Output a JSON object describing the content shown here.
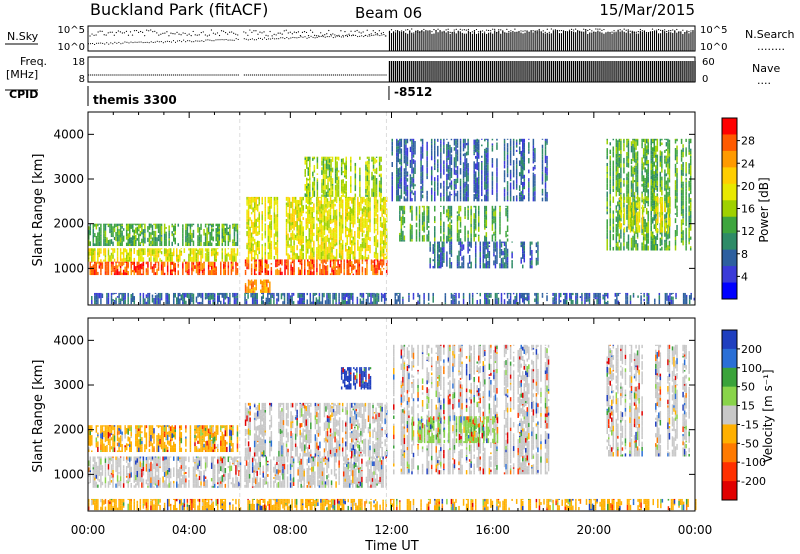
{
  "header": {
    "station": "Buckland Park (fitACF)",
    "beam": "Beam 06",
    "date": "15/Mar/2015"
  },
  "noise_panel": {
    "left_label": "N.Sky",
    "left_ticks": [
      "10^5",
      "10^0"
    ],
    "right_ticks": [
      "10^5",
      "10^0"
    ],
    "right_label": "N.Search",
    "legend_dots": "........"
  },
  "freq_panel": {
    "left_label_line1": "Freq.",
    "left_label_line2": "[MHz]",
    "left_ticks": [
      "18",
      "8"
    ],
    "right_ticks": [
      "60",
      "0"
    ],
    "right_label": "Nave",
    "legend_dots": "...."
  },
  "cpid": {
    "label": "CPID",
    "modes": [
      {
        "name": "themis 3300",
        "start_hour": 0
      },
      {
        "name": "-8512",
        "start_hour": 11.9
      }
    ]
  },
  "data_gaps_hours": [
    [
      6.0,
      6.15
    ],
    [
      11.8,
      11.9
    ]
  ],
  "chart_data": [
    {
      "type": "heatmap",
      "panel": "power",
      "ylabel": "Slant Range [km]",
      "ylim": [
        180,
        4500
      ],
      "yticks": [
        1000,
        2000,
        3000,
        4000
      ],
      "xlim_hours": [
        0,
        24
      ],
      "colorbar": {
        "label": "Power [dB]",
        "ticks": [
          "28",
          "24",
          "20",
          "16",
          "12",
          "8",
          "4"
        ],
        "colors": [
          "#ff0000",
          "#ff5a00",
          "#ff9a00",
          "#ffce00",
          "#e8e800",
          "#9fd100",
          "#3ea53e",
          "#2e8b67",
          "#2d5f9f",
          "#3a3ad8",
          "#0000ff"
        ]
      },
      "regions": [
        {
          "t0": 0.0,
          "t1": 5.9,
          "r0": 850,
          "r1": 1150,
          "level": 28
        },
        {
          "t0": 0.0,
          "t1": 5.9,
          "r0": 1150,
          "r1": 1450,
          "level": 20
        },
        {
          "t0": 0.0,
          "t1": 5.9,
          "r0": 1500,
          "r1": 2000,
          "level": 12
        },
        {
          "t0": 6.2,
          "t1": 11.8,
          "r0": 850,
          "r1": 1200,
          "level": 28
        },
        {
          "t0": 6.2,
          "t1": 11.8,
          "r0": 1200,
          "r1": 2600,
          "level": 20
        },
        {
          "t0": 6.2,
          "t1": 7.2,
          "r0": 450,
          "r1": 750,
          "level": 24
        },
        {
          "t0": 8.5,
          "t1": 11.6,
          "r0": 2600,
          "r1": 3500,
          "level": 16
        },
        {
          "t0": 12.0,
          "t1": 18.2,
          "r0": 2500,
          "r1": 3900,
          "level": 8
        },
        {
          "t0": 12.3,
          "t1": 16.6,
          "r0": 1600,
          "r1": 2400,
          "level": 12
        },
        {
          "t0": 13.5,
          "t1": 17.8,
          "r0": 1000,
          "r1": 1600,
          "level": 8
        },
        {
          "t0": 20.5,
          "t1": 23.8,
          "r0": 1400,
          "r1": 3900,
          "level": 12
        },
        {
          "t0": 21.0,
          "t1": 23.0,
          "r0": 1800,
          "r1": 2600,
          "level": 20
        },
        {
          "t0": 0.0,
          "t1": 24.0,
          "r0": 200,
          "r1": 450,
          "level": 8
        }
      ]
    },
    {
      "type": "heatmap",
      "panel": "velocity",
      "ylabel": "Slant Range [km]",
      "xlabel": "Time UT",
      "ylim": [
        180,
        4500
      ],
      "yticks": [
        1000,
        2000,
        3000,
        4000
      ],
      "xlim_hours": [
        0,
        24
      ],
      "xticks": [
        "00:00",
        "04:00",
        "08:00",
        "12:00",
        "16:00",
        "20:00",
        "00:00"
      ],
      "colorbar": {
        "label": "Velocity [m s⁻¹]",
        "ticks": [
          "200",
          "100",
          "50",
          "15",
          "-15",
          "-50",
          "-100",
          "-200"
        ],
        "colors": [
          "#1f3fbf",
          "#2a6fd6",
          "#3aa33a",
          "#89d44a",
          "#c8c8c8",
          "#ffb000",
          "#ff7a00",
          "#ff3000",
          "#e00000"
        ]
      },
      "regions": [
        {
          "t0": 0.0,
          "t1": 11.8,
          "r0": 700,
          "r1": 1400,
          "level": 0
        },
        {
          "t0": 0.0,
          "t1": 5.9,
          "r0": 1500,
          "r1": 2100,
          "level": -50
        },
        {
          "t0": 6.2,
          "t1": 11.8,
          "r0": 1400,
          "r1": 2600,
          "level": -15
        },
        {
          "t0": 10.0,
          "t1": 11.2,
          "r0": 2900,
          "r1": 3400,
          "level": 200
        },
        {
          "t0": 12.0,
          "t1": 18.2,
          "r0": 1000,
          "r1": 3900,
          "level": 0
        },
        {
          "t0": 12.8,
          "t1": 16.2,
          "r0": 1700,
          "r1": 2300,
          "level": 50
        },
        {
          "t0": 20.5,
          "t1": 23.8,
          "r0": 1400,
          "r1": 3900,
          "level": 0
        },
        {
          "t0": 0.0,
          "t1": 24.0,
          "r0": 200,
          "r1": 450,
          "level": -50
        }
      ]
    }
  ]
}
